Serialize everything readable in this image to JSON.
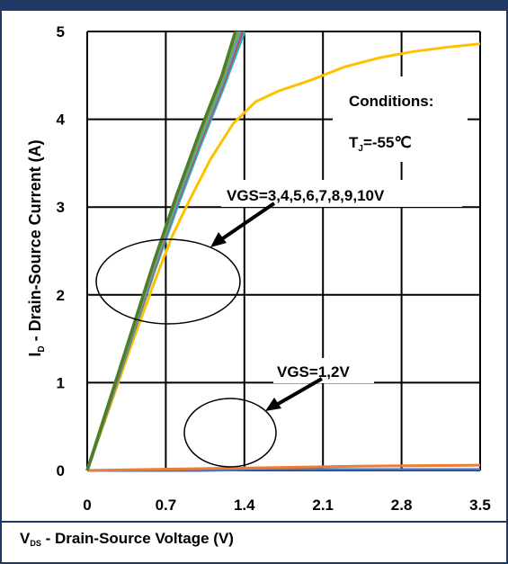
{
  "colors": {
    "frame": "#1f3864",
    "grid": "#000000",
    "curve_vgs_3_to_10": [
      "#4e7d2c",
      "#70ad47",
      "#5b9bd5",
      "#c0504d",
      "#9b59b6",
      "#ed7d31",
      "#23b4c8",
      "#4e7d2c"
    ],
    "curve_vgs_1_2": [
      "#4472c4",
      "#ed7d31"
    ],
    "curve_highlight": "#ffc000"
  },
  "chart_data": {
    "type": "line",
    "x_axis": {
      "label_main": "V",
      "label_sub": "DS",
      "label_rest": " - Drain-Source Voltage (V)",
      "ticks": [
        "0",
        "0.7",
        "1.4",
        "2.1",
        "2.8",
        "3.5"
      ],
      "range": [
        0,
        3.5
      ]
    },
    "y_axis": {
      "label_main": "I",
      "label_sub": "D",
      "label_rest": " - Drain-Source Current (A)",
      "ticks": [
        "0",
        "1",
        "2",
        "3",
        "4",
        "5"
      ],
      "range": [
        0,
        5
      ]
    },
    "grid": true,
    "annotations": {
      "conditions_title": "Conditions:",
      "tj_main": "T",
      "tj_sub": "J",
      "tj_rest": "=-55℃",
      "vgs_high": "VGS=3,4,5,6,7,8,9,10V",
      "vgs_low": "VGS=1,2V"
    },
    "series_high_vgs": [
      {
        "x": [
          0,
          0.2,
          0.4,
          0.6,
          0.8,
          1.0,
          1.2,
          1.32
        ],
        "y": [
          0,
          0.8,
          1.6,
          2.4,
          3.15,
          3.85,
          4.5,
          5.0
        ]
      },
      {
        "x": [
          0,
          0.2,
          0.4,
          0.6,
          0.8,
          1.0,
          1.2,
          1.34
        ],
        "y": [
          0,
          0.79,
          1.58,
          2.37,
          3.12,
          3.8,
          4.45,
          5.0
        ]
      },
      {
        "x": [
          0,
          0.2,
          0.4,
          0.6,
          0.8,
          1.0,
          1.2,
          1.36
        ],
        "y": [
          0,
          0.78,
          1.56,
          2.34,
          3.08,
          3.76,
          4.4,
          5.0
        ]
      },
      {
        "x": [
          0,
          0.2,
          0.4,
          0.6,
          0.8,
          1.0,
          1.2,
          1.38
        ],
        "y": [
          0,
          0.77,
          1.54,
          2.31,
          3.05,
          3.72,
          4.36,
          5.0
        ]
      },
      {
        "x": [
          0,
          0.2,
          0.4,
          0.6,
          0.8,
          1.0,
          1.2,
          1.4
        ],
        "y": [
          0,
          0.76,
          1.52,
          2.28,
          3.0,
          3.68,
          4.32,
          5.0
        ]
      }
    ],
    "series_vgs_3": {
      "x": [
        0,
        0.2,
        0.4,
        0.6,
        0.75,
        0.9,
        1.1,
        1.3,
        1.5,
        1.7,
        2.0,
        2.3,
        2.6,
        2.9,
        3.2,
        3.5
      ],
      "y": [
        0,
        0.72,
        1.45,
        2.15,
        2.65,
        3.05,
        3.55,
        3.95,
        4.2,
        4.32,
        4.45,
        4.6,
        4.7,
        4.77,
        4.82,
        4.86
      ]
    },
    "series_vgs_low": [
      {
        "x": [
          0,
          0.5,
          1.0,
          1.5,
          2.0,
          2.5,
          3.0,
          3.5
        ],
        "y": [
          0,
          0.0,
          0.0,
          0.01,
          0.01,
          0.01,
          0.01,
          0.01
        ]
      },
      {
        "x": [
          0,
          0.5,
          1.0,
          1.5,
          2.0,
          2.5,
          3.0,
          3.5
        ],
        "y": [
          0,
          0.01,
          0.02,
          0.03,
          0.04,
          0.05,
          0.055,
          0.06
        ]
      }
    ]
  }
}
